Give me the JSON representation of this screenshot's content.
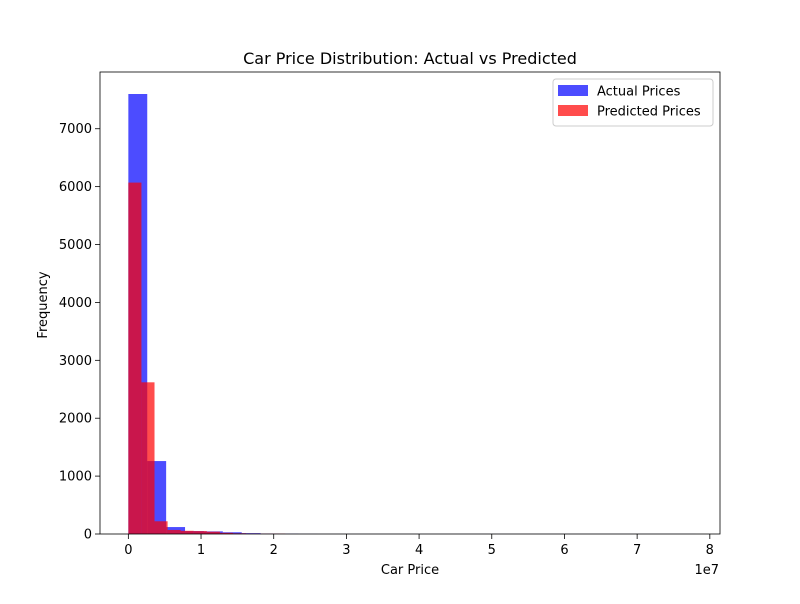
{
  "chart_data": {
    "type": "bar",
    "title": "Car Price Distribution: Actual vs Predicted",
    "xlabel": "Car Price",
    "ylabel": "Frequency",
    "x_offset_text": "1e7",
    "xlim": [
      -3900000,
      81400000
    ],
    "ylim": [
      0,
      7980
    ],
    "x_ticks": [
      0,
      10000000,
      20000000,
      30000000,
      40000000,
      50000000,
      60000000,
      70000000,
      80000000
    ],
    "x_tick_labels": [
      "0",
      "1",
      "2",
      "3",
      "4",
      "5",
      "6",
      "7",
      "8"
    ],
    "y_ticks": [
      0,
      1000,
      2000,
      3000,
      4000,
      5000,
      6000,
      7000
    ],
    "y_tick_labels": [
      "0",
      "1000",
      "2000",
      "3000",
      "4000",
      "5000",
      "6000",
      "7000"
    ],
    "grid": false,
    "legend_position": "top-right",
    "series": [
      {
        "name": "Actual Prices",
        "color": "#0000ff",
        "opacity": 0.7,
        "bins": [
          {
            "x0": 0,
            "x1": 2600000,
            "count": 7600
          },
          {
            "x0": 2600000,
            "x1": 5200000,
            "count": 1260
          },
          {
            "x0": 5200000,
            "x1": 7800000,
            "count": 120
          },
          {
            "x0": 7800000,
            "x1": 10400000,
            "count": 50
          },
          {
            "x0": 10400000,
            "x1": 13000000,
            "count": 45
          },
          {
            "x0": 13000000,
            "x1": 15600000,
            "count": 30
          },
          {
            "x0": 15600000,
            "x1": 18200000,
            "count": 15
          },
          {
            "x0": 18200000,
            "x1": 20800000,
            "count": 8
          },
          {
            "x0": 20800000,
            "x1": 23400000,
            "count": 4
          },
          {
            "x0": 23400000,
            "x1": 26000000,
            "count": 2
          },
          {
            "x0": 26000000,
            "x1": 78000000,
            "count": 1
          }
        ]
      },
      {
        "name": "Predicted Prices",
        "color": "#ff0000",
        "opacity": 0.7,
        "bins": [
          {
            "x0": 0,
            "x1": 1800000,
            "count": 6070
          },
          {
            "x0": 1800000,
            "x1": 3600000,
            "count": 2620
          },
          {
            "x0": 3600000,
            "x1": 5400000,
            "count": 220
          },
          {
            "x0": 5400000,
            "x1": 7200000,
            "count": 70
          },
          {
            "x0": 7200000,
            "x1": 9000000,
            "count": 55
          },
          {
            "x0": 9000000,
            "x1": 10800000,
            "count": 50
          },
          {
            "x0": 10800000,
            "x1": 12600000,
            "count": 40
          },
          {
            "x0": 12600000,
            "x1": 14400000,
            "count": 20
          },
          {
            "x0": 14400000,
            "x1": 16200000,
            "count": 12
          },
          {
            "x0": 16200000,
            "x1": 18000000,
            "count": 8
          },
          {
            "x0": 18000000,
            "x1": 19800000,
            "count": 5
          },
          {
            "x0": 19800000,
            "x1": 21600000,
            "count": 6
          }
        ]
      }
    ]
  }
}
